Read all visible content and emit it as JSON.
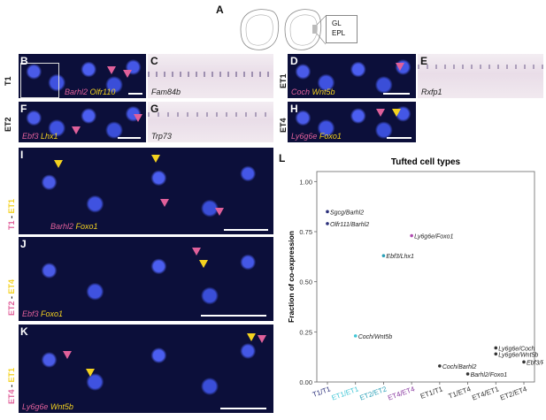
{
  "panels": {
    "A": {
      "letter": "A",
      "gl": "GL",
      "epl": "EPL"
    },
    "B": {
      "letter": "B",
      "row": "T1",
      "probe1": "Barhl2",
      "probe2": "Olfr110"
    },
    "C": {
      "letter": "C",
      "probe": "Fam84b"
    },
    "D": {
      "letter": "D",
      "row": "ET1",
      "probe1": "Coch",
      "probe2": "Wnt5b"
    },
    "E": {
      "letter": "E",
      "probe": "Rxfp1"
    },
    "F": {
      "letter": "F",
      "row": "ET2",
      "probe1": "Ebf3",
      "probe2": "Lhx1"
    },
    "G": {
      "letter": "G",
      "probe": "Trp73"
    },
    "H": {
      "letter": "H",
      "row": "ET4",
      "probe1": "Ly6g6e",
      "probe2": "Foxo1"
    },
    "I": {
      "letter": "I",
      "side_a": "T1",
      "side_sep": " - ",
      "side_b": "ET1",
      "probe1": "Barhl2",
      "probe2": "Foxo1"
    },
    "J": {
      "letter": "J",
      "side_a": "ET2",
      "side_sep": " - ",
      "side_b": "ET4",
      "probe1": "Ebf3",
      "probe2": "Foxo1"
    },
    "K": {
      "letter": "K",
      "side_a": "ET4",
      "side_sep": " - ",
      "side_b": "ET1",
      "probe1": "Ly6g6e",
      "probe2": "Wnt5b"
    },
    "L": {
      "letter": "L"
    }
  },
  "colors": {
    "magenta": "#e0609a",
    "yellow": "#f4d21f",
    "cyan": "#3fc6d6",
    "purple": "#8a3aa0",
    "navy": "#2a2f7a",
    "dark": "#333333"
  },
  "chart_data": {
    "type": "scatter",
    "title": "Tufted cell types",
    "ylabel": "Fraction of co-expression",
    "xlabel": "",
    "ylim": [
      0,
      1.05
    ],
    "yticks": [
      "0.00",
      "0.25",
      "0.50",
      "0.75",
      "1.00"
    ],
    "categories": [
      "T1/T1",
      "ET1/ET1",
      "ET2/ET2",
      "ET4/ET4",
      "ET1/T1",
      "T1/ET4",
      "ET4/ET1",
      "ET2/ET4"
    ],
    "category_colors": [
      "#2a2f7a",
      "#3fc6d6",
      "#2aa0b8",
      "#8a3aa0",
      "#333333",
      "#333333",
      "#333333",
      "#333333"
    ],
    "points": [
      {
        "label": "Sgcg/Barhl2",
        "x": "T1/T1",
        "y": 0.85,
        "color": "#2a2f7a"
      },
      {
        "label": "Olfr111/Barhl2",
        "x": "T1/T1",
        "y": 0.79,
        "color": "#2a2f7a"
      },
      {
        "label": "Ly6g6e/Foxo1",
        "x": "ET4/ET4",
        "y": 0.73,
        "color": "#b04ab0"
      },
      {
        "label": "Ebf3/Lhx1",
        "x": "ET2/ET2",
        "y": 0.63,
        "color": "#2aa0b8"
      },
      {
        "label": "Coch/Wnt5b",
        "x": "ET1/ET1",
        "y": 0.23,
        "color": "#3fc6d6"
      },
      {
        "label": "Ly6g6e/Coch",
        "x": "ET4/ET1",
        "y": 0.17,
        "color": "#333333"
      },
      {
        "label": "Ly6g6e/Wnt5b",
        "x": "ET4/ET1",
        "y": 0.14,
        "color": "#333333"
      },
      {
        "label": "Ebf3/Foxo1",
        "x": "ET2/ET4",
        "y": 0.1,
        "color": "#333333"
      },
      {
        "label": "Coch/Barhl2",
        "x": "ET1/T1",
        "y": 0.08,
        "color": "#333333"
      },
      {
        "label": "Barhl2/Foxo1",
        "x": "T1/ET4",
        "y": 0.04,
        "color": "#333333"
      }
    ]
  }
}
